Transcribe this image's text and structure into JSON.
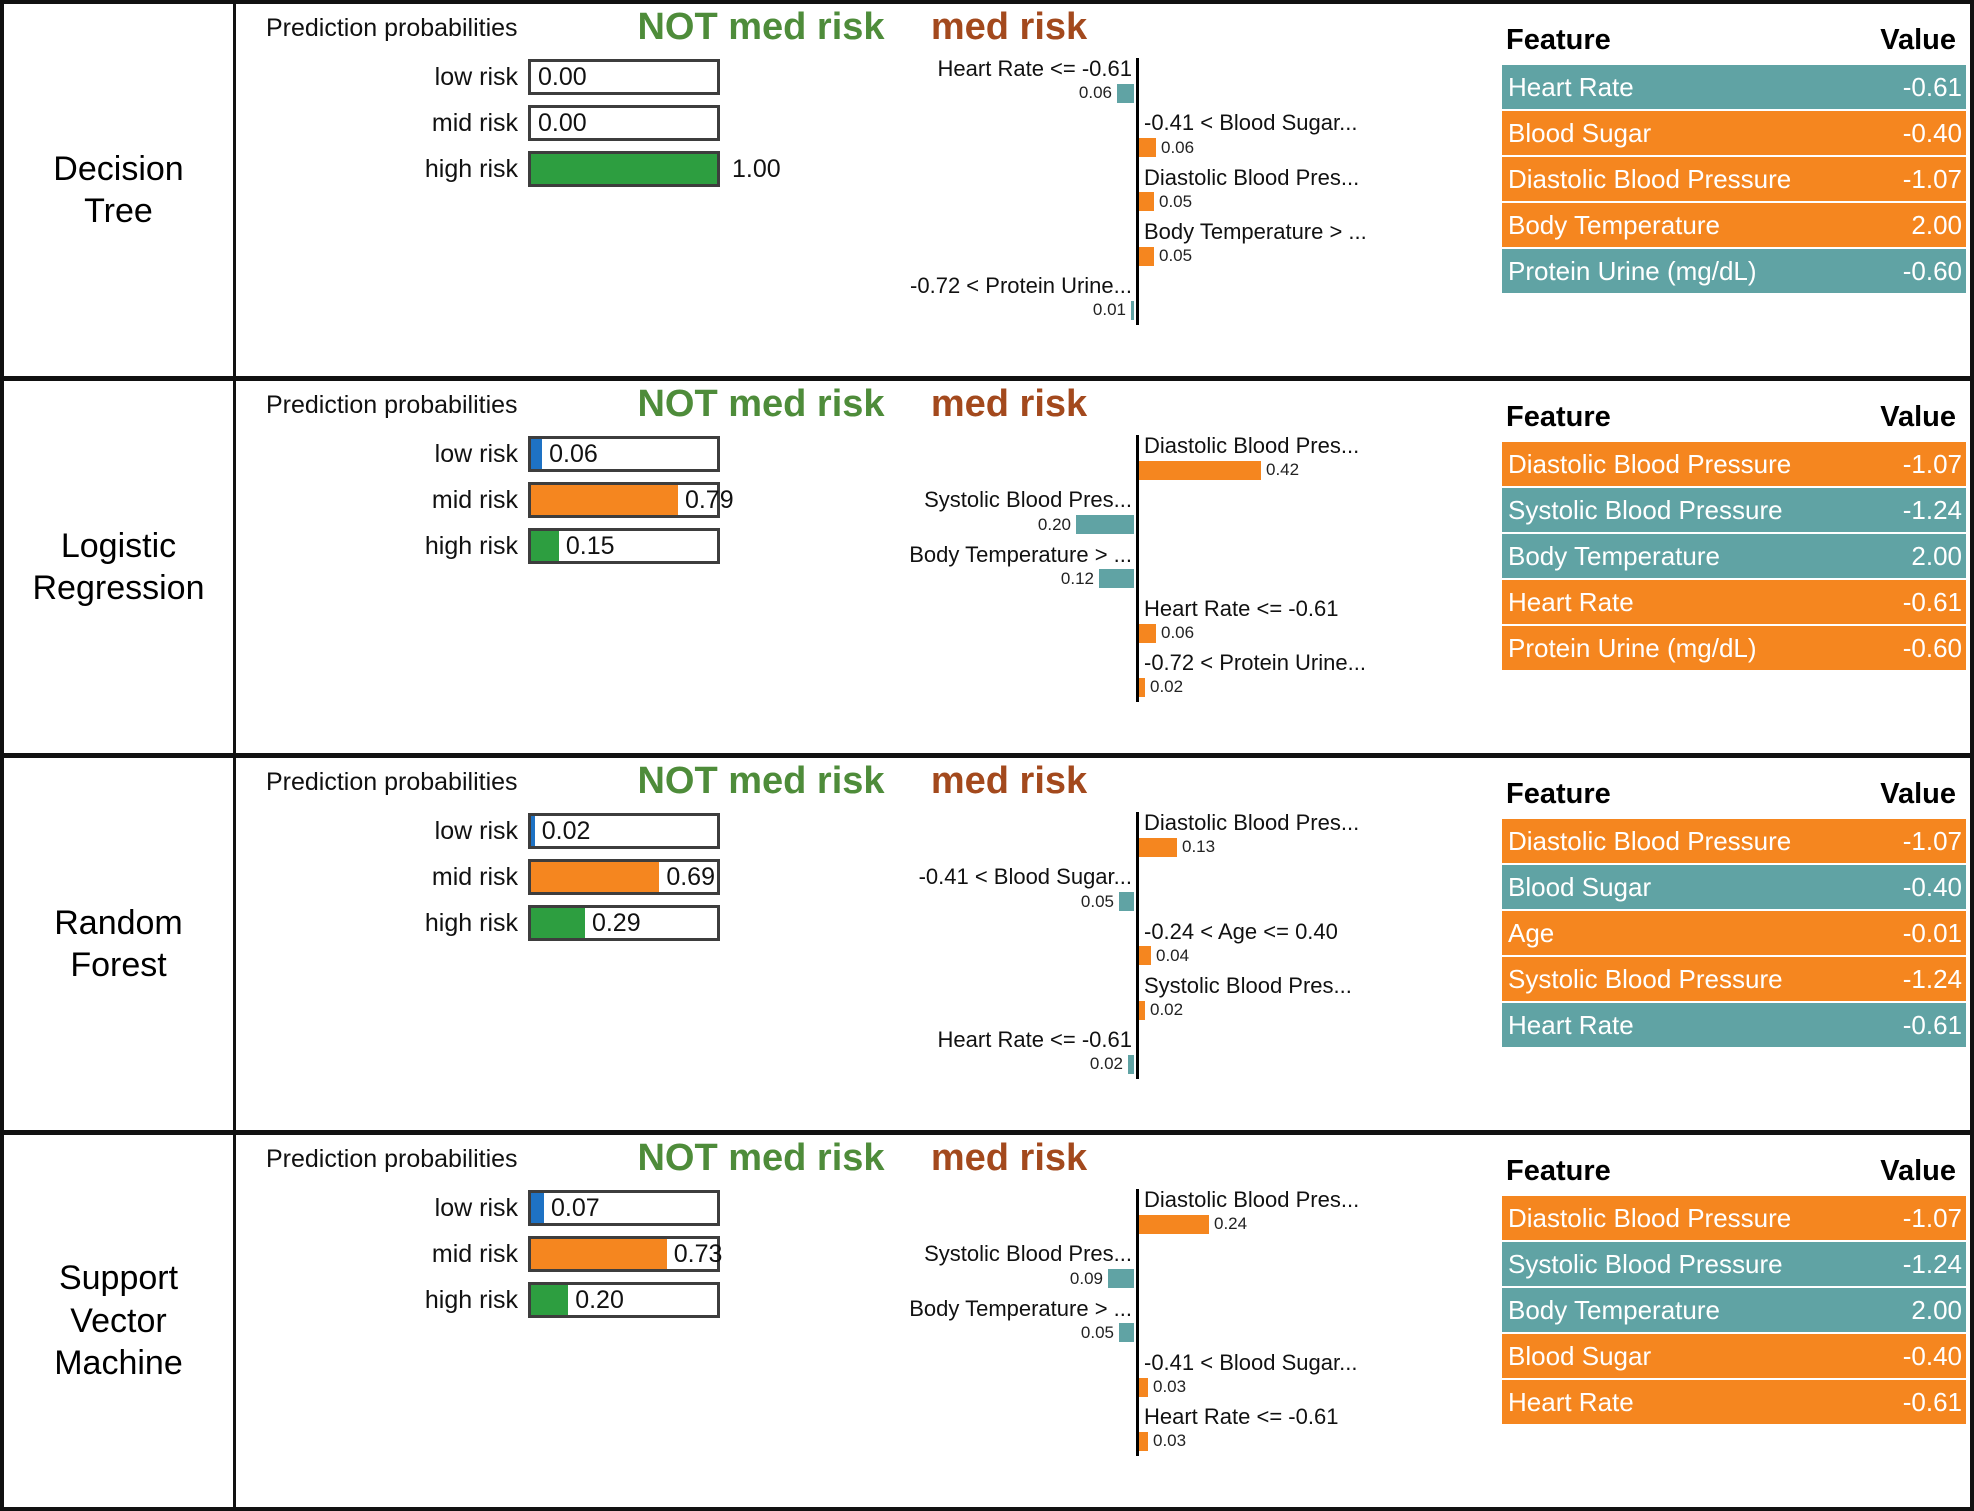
{
  "titles": {
    "probs": "Prediction probabilities",
    "not_med_risk": "NOT med risk",
    "med_risk": "med risk",
    "feature": "Feature",
    "value": "Value"
  },
  "colors": {
    "orange": "#f5861f",
    "teal": "#60a3a4",
    "green": "#2d9e40",
    "blue": "#1e72c4",
    "not_med_risk_title": "#4e8c3a",
    "med_risk_title": "#a3491d"
  },
  "chart_data": [
    {
      "type": "bar",
      "model": "Decision Tree",
      "prediction_probabilities": [
        {
          "label": "low risk",
          "value": 0.0,
          "display": "0.00",
          "color": "blue"
        },
        {
          "label": "mid risk",
          "value": 0.0,
          "display": "0.00",
          "color": "orange"
        },
        {
          "label": "high risk",
          "value": 1.0,
          "display": "1.00",
          "color": "green"
        }
      ],
      "lime_contributions": [
        {
          "feature": "Heart Rate <= -0.61",
          "weight": 0.06,
          "display": "0.06",
          "side": "NOT med risk"
        },
        {
          "feature": "-0.41 < Blood Sugar...",
          "weight": 0.06,
          "display": "0.06",
          "side": "med risk"
        },
        {
          "feature": "Diastolic Blood Pres...",
          "weight": 0.05,
          "display": "0.05",
          "side": "med risk"
        },
        {
          "feature": "Body Temperature > ...",
          "weight": 0.05,
          "display": "0.05",
          "side": "med risk"
        },
        {
          "feature": "-0.72 < Protein Urine...",
          "weight": 0.01,
          "display": "0.01",
          "side": "NOT med risk"
        }
      ],
      "feature_table": [
        {
          "feature": "Heart Rate",
          "value": "-0.61",
          "tone": "teal"
        },
        {
          "feature": "Blood Sugar",
          "value": "-0.40",
          "tone": "orange"
        },
        {
          "feature": "Diastolic Blood Pressure",
          "value": "-1.07",
          "tone": "orange"
        },
        {
          "feature": "Body Temperature",
          "value": "2.00",
          "tone": "orange"
        },
        {
          "feature": "Protein Urine (mg/dL)",
          "value": "-0.60",
          "tone": "teal"
        }
      ]
    },
    {
      "type": "bar",
      "model": "Logistic Regression",
      "prediction_probabilities": [
        {
          "label": "low risk",
          "value": 0.06,
          "display": "0.06",
          "color": "blue"
        },
        {
          "label": "mid risk",
          "value": 0.79,
          "display": "0.79",
          "color": "orange"
        },
        {
          "label": "high risk",
          "value": 0.15,
          "display": "0.15",
          "color": "green"
        }
      ],
      "lime_contributions": [
        {
          "feature": "Diastolic Blood Pres...",
          "weight": 0.42,
          "display": "0.42",
          "side": "med risk"
        },
        {
          "feature": "Systolic Blood Pres...",
          "weight": 0.2,
          "display": "0.20",
          "side": "NOT med risk"
        },
        {
          "feature": "Body Temperature > ...",
          "weight": 0.12,
          "display": "0.12",
          "side": "NOT med risk"
        },
        {
          "feature": "Heart Rate <= -0.61",
          "weight": 0.06,
          "display": "0.06",
          "side": "med risk"
        },
        {
          "feature": "-0.72 < Protein Urine...",
          "weight": 0.02,
          "display": "0.02",
          "side": "med risk"
        }
      ],
      "feature_table": [
        {
          "feature": "Diastolic Blood Pressure",
          "value": "-1.07",
          "tone": "orange"
        },
        {
          "feature": "Systolic Blood Pressure",
          "value": "-1.24",
          "tone": "teal"
        },
        {
          "feature": "Body Temperature",
          "value": "2.00",
          "tone": "teal"
        },
        {
          "feature": "Heart Rate",
          "value": "-0.61",
          "tone": "orange"
        },
        {
          "feature": "Protein Urine (mg/dL)",
          "value": "-0.60",
          "tone": "orange"
        }
      ]
    },
    {
      "type": "bar",
      "model": "Random Forest",
      "prediction_probabilities": [
        {
          "label": "low risk",
          "value": 0.02,
          "display": "0.02",
          "color": "blue"
        },
        {
          "label": "mid risk",
          "value": 0.69,
          "display": "0.69",
          "color": "orange"
        },
        {
          "label": "high risk",
          "value": 0.29,
          "display": "0.29",
          "color": "green"
        }
      ],
      "lime_contributions": [
        {
          "feature": "Diastolic Blood Pres...",
          "weight": 0.13,
          "display": "0.13",
          "side": "med risk"
        },
        {
          "feature": "-0.41 < Blood Sugar...",
          "weight": 0.05,
          "display": "0.05",
          "side": "NOT med risk"
        },
        {
          "feature": "-0.24 < Age <= 0.40",
          "weight": 0.04,
          "display": "0.04",
          "side": "med risk"
        },
        {
          "feature": "Systolic Blood Pres...",
          "weight": 0.02,
          "display": "0.02",
          "side": "med risk"
        },
        {
          "feature": "Heart Rate <= -0.61",
          "weight": 0.02,
          "display": "0.02",
          "side": "NOT med risk"
        }
      ],
      "feature_table": [
        {
          "feature": "Diastolic Blood Pressure",
          "value": "-1.07",
          "tone": "orange"
        },
        {
          "feature": "Blood Sugar",
          "value": "-0.40",
          "tone": "teal"
        },
        {
          "feature": "Age",
          "value": "-0.01",
          "tone": "orange"
        },
        {
          "feature": "Systolic Blood Pressure",
          "value": "-1.24",
          "tone": "orange"
        },
        {
          "feature": "Heart Rate",
          "value": "-0.61",
          "tone": "teal"
        }
      ]
    },
    {
      "type": "bar",
      "model": "Support Vector Machine",
      "prediction_probabilities": [
        {
          "label": "low risk",
          "value": 0.07,
          "display": "0.07",
          "color": "blue"
        },
        {
          "label": "mid risk",
          "value": 0.73,
          "display": "0.73",
          "color": "orange"
        },
        {
          "label": "high risk",
          "value": 0.2,
          "display": "0.20",
          "color": "green"
        }
      ],
      "lime_contributions": [
        {
          "feature": "Diastolic Blood Pres...",
          "weight": 0.24,
          "display": "0.24",
          "side": "med risk"
        },
        {
          "feature": "Systolic Blood Pres...",
          "weight": 0.09,
          "display": "0.09",
          "side": "NOT med risk"
        },
        {
          "feature": "Body Temperature > ...",
          "weight": 0.05,
          "display": "0.05",
          "side": "NOT med risk"
        },
        {
          "feature": "-0.41 < Blood Sugar...",
          "weight": 0.03,
          "display": "0.03",
          "side": "med risk"
        },
        {
          "feature": "Heart Rate <= -0.61",
          "weight": 0.03,
          "display": "0.03",
          "side": "med risk"
        }
      ],
      "feature_table": [
        {
          "feature": "Diastolic Blood Pressure",
          "value": "-1.07",
          "tone": "orange"
        },
        {
          "feature": "Systolic Blood Pressure",
          "value": "-1.24",
          "tone": "teal"
        },
        {
          "feature": "Body Temperature",
          "value": "2.00",
          "tone": "teal"
        },
        {
          "feature": "Blood Sugar",
          "value": "-0.40",
          "tone": "orange"
        },
        {
          "feature": "Heart Rate",
          "value": "-0.61",
          "tone": "orange"
        }
      ]
    }
  ]
}
